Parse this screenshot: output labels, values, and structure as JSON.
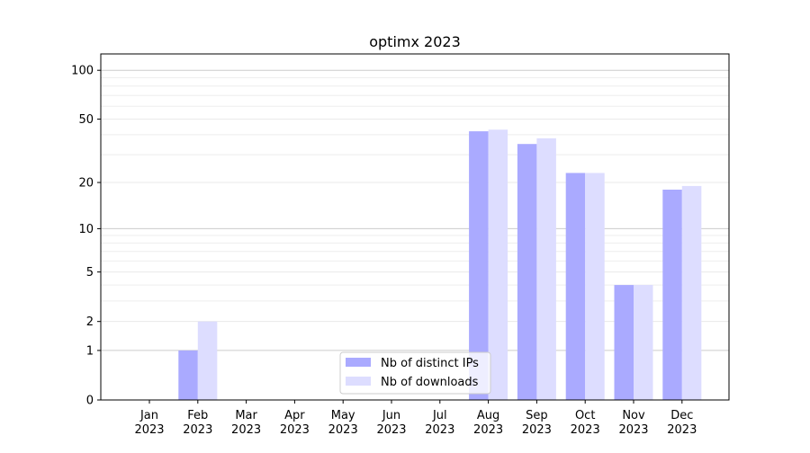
{
  "chart_data": {
    "type": "bar",
    "title": "optimx 2023",
    "xlabel": "",
    "ylabel": "",
    "yscale": "symlog (log10(1+y))",
    "ylim": [
      0,
      130
    ],
    "yticks": [
      0,
      1,
      2,
      5,
      10,
      20,
      50,
      100
    ],
    "grid": true,
    "legend_placement": "bottom-center",
    "categories": [
      "Jan\n2023",
      "Feb\n2023",
      "Mar\n2023",
      "Apr\n2023",
      "May\n2023",
      "Jun\n2023",
      "Jul\n2023",
      "Aug\n2023",
      "Sep\n2023",
      "Oct\n2023",
      "Nov\n2023",
      "Dec\n2023"
    ],
    "series": [
      {
        "name": "Nb of distinct IPs",
        "color": "#aaaaff",
        "values": [
          0,
          1,
          0,
          0,
          0,
          0,
          0,
          42,
          35,
          23,
          4,
          18
        ]
      },
      {
        "name": "Nb of downloads",
        "color": "#ddddff",
        "values": [
          0,
          2,
          0,
          0,
          0,
          0,
          0,
          43,
          38,
          23,
          4,
          19
        ]
      }
    ]
  }
}
